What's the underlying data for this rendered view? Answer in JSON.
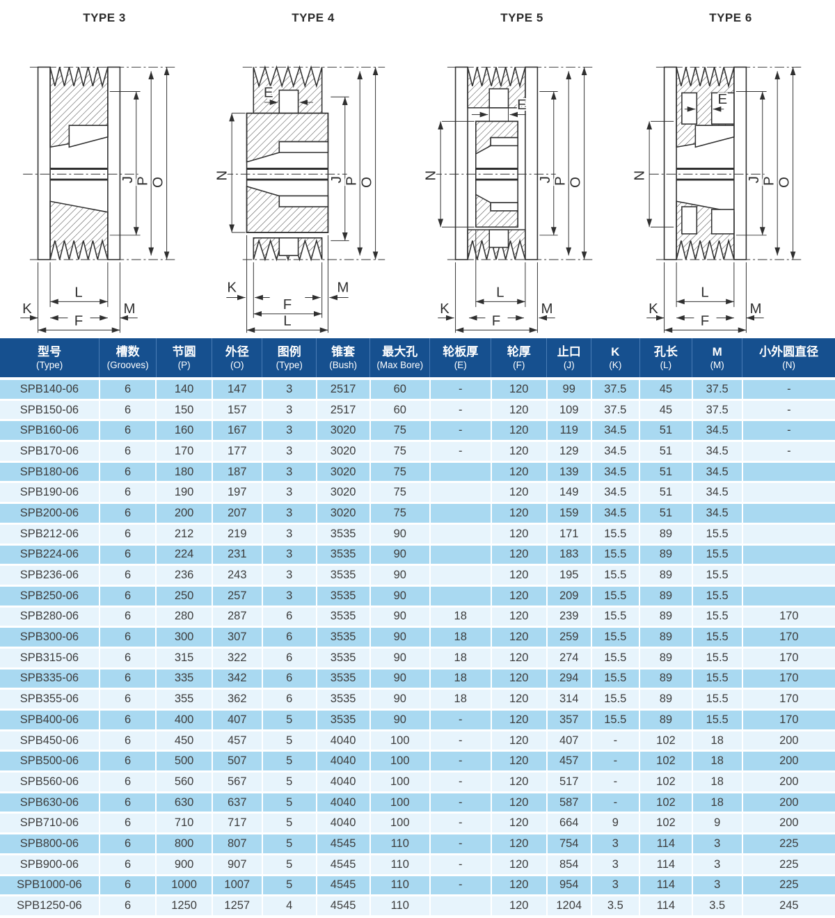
{
  "colors": {
    "header_bg": "#16508f",
    "row_odd": "#a9d9f1",
    "row_even": "#e7f4fc"
  },
  "drawings": [
    {
      "title": "TYPE 3",
      "dims": {
        "j": "J",
        "p": "P",
        "o": "O",
        "k": "K",
        "l": "L",
        "m": "M",
        "f": "F"
      }
    },
    {
      "title": "TYPE 4",
      "dims": {
        "e": "E",
        "n": "N",
        "j": "J",
        "p": "P",
        "o": "O",
        "k": "K",
        "l": "L",
        "m": "M",
        "f": "F"
      }
    },
    {
      "title": "TYPE 5",
      "dims": {
        "e": "E",
        "n": "N",
        "j": "J",
        "p": "P",
        "o": "O",
        "k": "K",
        "l": "L",
        "m": "M",
        "f": "F"
      }
    },
    {
      "title": "TYPE 6",
      "dims": {
        "e": "E",
        "n": "N",
        "j": "J",
        "p": "P",
        "o": "O",
        "k": "K",
        "l": "L",
        "m": "M",
        "f": "F"
      }
    }
  ],
  "table": {
    "headers": [
      {
        "cn": "型号",
        "en": "(Type)"
      },
      {
        "cn": "槽数",
        "en": "(Grooves)"
      },
      {
        "cn": "节圆",
        "en": "(P)"
      },
      {
        "cn": "外径",
        "en": "(O)"
      },
      {
        "cn": "图例",
        "en": "(Type)"
      },
      {
        "cn": "锥套",
        "en": "(Bush)"
      },
      {
        "cn": "最大孔",
        "en": "(Max Bore)"
      },
      {
        "cn": "轮板厚",
        "en": "(E)"
      },
      {
        "cn": "轮厚",
        "en": "(F)"
      },
      {
        "cn": "止口",
        "en": "(J)"
      },
      {
        "cn": "K",
        "en": "(K)"
      },
      {
        "cn": "孔长",
        "en": "(L)"
      },
      {
        "cn": "M",
        "en": "(M)"
      },
      {
        "cn": "小外圆直径",
        "en": "(N)"
      }
    ],
    "rows": [
      [
        "SPB140-06",
        "6",
        "140",
        "147",
        "3",
        "2517",
        "60",
        "-",
        "120",
        "99",
        "37.5",
        "45",
        "37.5",
        "-"
      ],
      [
        "SPB150-06",
        "6",
        "150",
        "157",
        "3",
        "2517",
        "60",
        "-",
        "120",
        "109",
        "37.5",
        "45",
        "37.5",
        "-"
      ],
      [
        "SPB160-06",
        "6",
        "160",
        "167",
        "3",
        "3020",
        "75",
        "-",
        "120",
        "119",
        "34.5",
        "51",
        "34.5",
        "-"
      ],
      [
        "SPB170-06",
        "6",
        "170",
        "177",
        "3",
        "3020",
        "75",
        "-",
        "120",
        "129",
        "34.5",
        "51",
        "34.5",
        "-"
      ],
      [
        "SPB180-06",
        "6",
        "180",
        "187",
        "3",
        "3020",
        "75",
        "",
        "120",
        "139",
        "34.5",
        "51",
        "34.5",
        ""
      ],
      [
        "SPB190-06",
        "6",
        "190",
        "197",
        "3",
        "3020",
        "75",
        "",
        "120",
        "149",
        "34.5",
        "51",
        "34.5",
        ""
      ],
      [
        "SPB200-06",
        "6",
        "200",
        "207",
        "3",
        "3020",
        "75",
        "",
        "120",
        "159",
        "34.5",
        "51",
        "34.5",
        ""
      ],
      [
        "SPB212-06",
        "6",
        "212",
        "219",
        "3",
        "3535",
        "90",
        "",
        "120",
        "171",
        "15.5",
        "89",
        "15.5",
        ""
      ],
      [
        "SPB224-06",
        "6",
        "224",
        "231",
        "3",
        "3535",
        "90",
        "",
        "120",
        "183",
        "15.5",
        "89",
        "15.5",
        ""
      ],
      [
        "SPB236-06",
        "6",
        "236",
        "243",
        "3",
        "3535",
        "90",
        "",
        "120",
        "195",
        "15.5",
        "89",
        "15.5",
        ""
      ],
      [
        "SPB250-06",
        "6",
        "250",
        "257",
        "3",
        "3535",
        "90",
        "",
        "120",
        "209",
        "15.5",
        "89",
        "15.5",
        ""
      ],
      [
        "SPB280-06",
        "6",
        "280",
        "287",
        "6",
        "3535",
        "90",
        "18",
        "120",
        "239",
        "15.5",
        "89",
        "15.5",
        "170"
      ],
      [
        "SPB300-06",
        "6",
        "300",
        "307",
        "6",
        "3535",
        "90",
        "18",
        "120",
        "259",
        "15.5",
        "89",
        "15.5",
        "170"
      ],
      [
        "SPB315-06",
        "6",
        "315",
        "322",
        "6",
        "3535",
        "90",
        "18",
        "120",
        "274",
        "15.5",
        "89",
        "15.5",
        "170"
      ],
      [
        "SPB335-06",
        "6",
        "335",
        "342",
        "6",
        "3535",
        "90",
        "18",
        "120",
        "294",
        "15.5",
        "89",
        "15.5",
        "170"
      ],
      [
        "SPB355-06",
        "6",
        "355",
        "362",
        "6",
        "3535",
        "90",
        "18",
        "120",
        "314",
        "15.5",
        "89",
        "15.5",
        "170"
      ],
      [
        "SPB400-06",
        "6",
        "400",
        "407",
        "5",
        "3535",
        "90",
        "-",
        "120",
        "357",
        "15.5",
        "89",
        "15.5",
        "170"
      ],
      [
        "SPB450-06",
        "6",
        "450",
        "457",
        "5",
        "4040",
        "100",
        "-",
        "120",
        "407",
        "-",
        "102",
        "18",
        "200"
      ],
      [
        "SPB500-06",
        "6",
        "500",
        "507",
        "5",
        "4040",
        "100",
        "-",
        "120",
        "457",
        "-",
        "102",
        "18",
        "200"
      ],
      [
        "SPB560-06",
        "6",
        "560",
        "567",
        "5",
        "4040",
        "100",
        "-",
        "120",
        "517",
        "-",
        "102",
        "18",
        "200"
      ],
      [
        "SPB630-06",
        "6",
        "630",
        "637",
        "5",
        "4040",
        "100",
        "-",
        "120",
        "587",
        "-",
        "102",
        "18",
        "200"
      ],
      [
        "SPB710-06",
        "6",
        "710",
        "717",
        "5",
        "4040",
        "100",
        "-",
        "120",
        "664",
        "9",
        "102",
        "9",
        "200"
      ],
      [
        "SPB800-06",
        "6",
        "800",
        "807",
        "5",
        "4545",
        "110",
        "-",
        "120",
        "754",
        "3",
        "114",
        "3",
        "225"
      ],
      [
        "SPB900-06",
        "6",
        "900",
        "907",
        "5",
        "4545",
        "110",
        "-",
        "120",
        "854",
        "3",
        "114",
        "3",
        "225"
      ],
      [
        "SPB1000-06",
        "6",
        "1000",
        "1007",
        "5",
        "4545",
        "110",
        "-",
        "120",
        "954",
        "3",
        "114",
        "3",
        "225"
      ],
      [
        "SPB1250-06",
        "6",
        "1250",
        "1257",
        "4",
        "4545",
        "110",
        "",
        "120",
        "1204",
        "3.5",
        "114",
        "3.5",
        "245"
      ]
    ]
  }
}
